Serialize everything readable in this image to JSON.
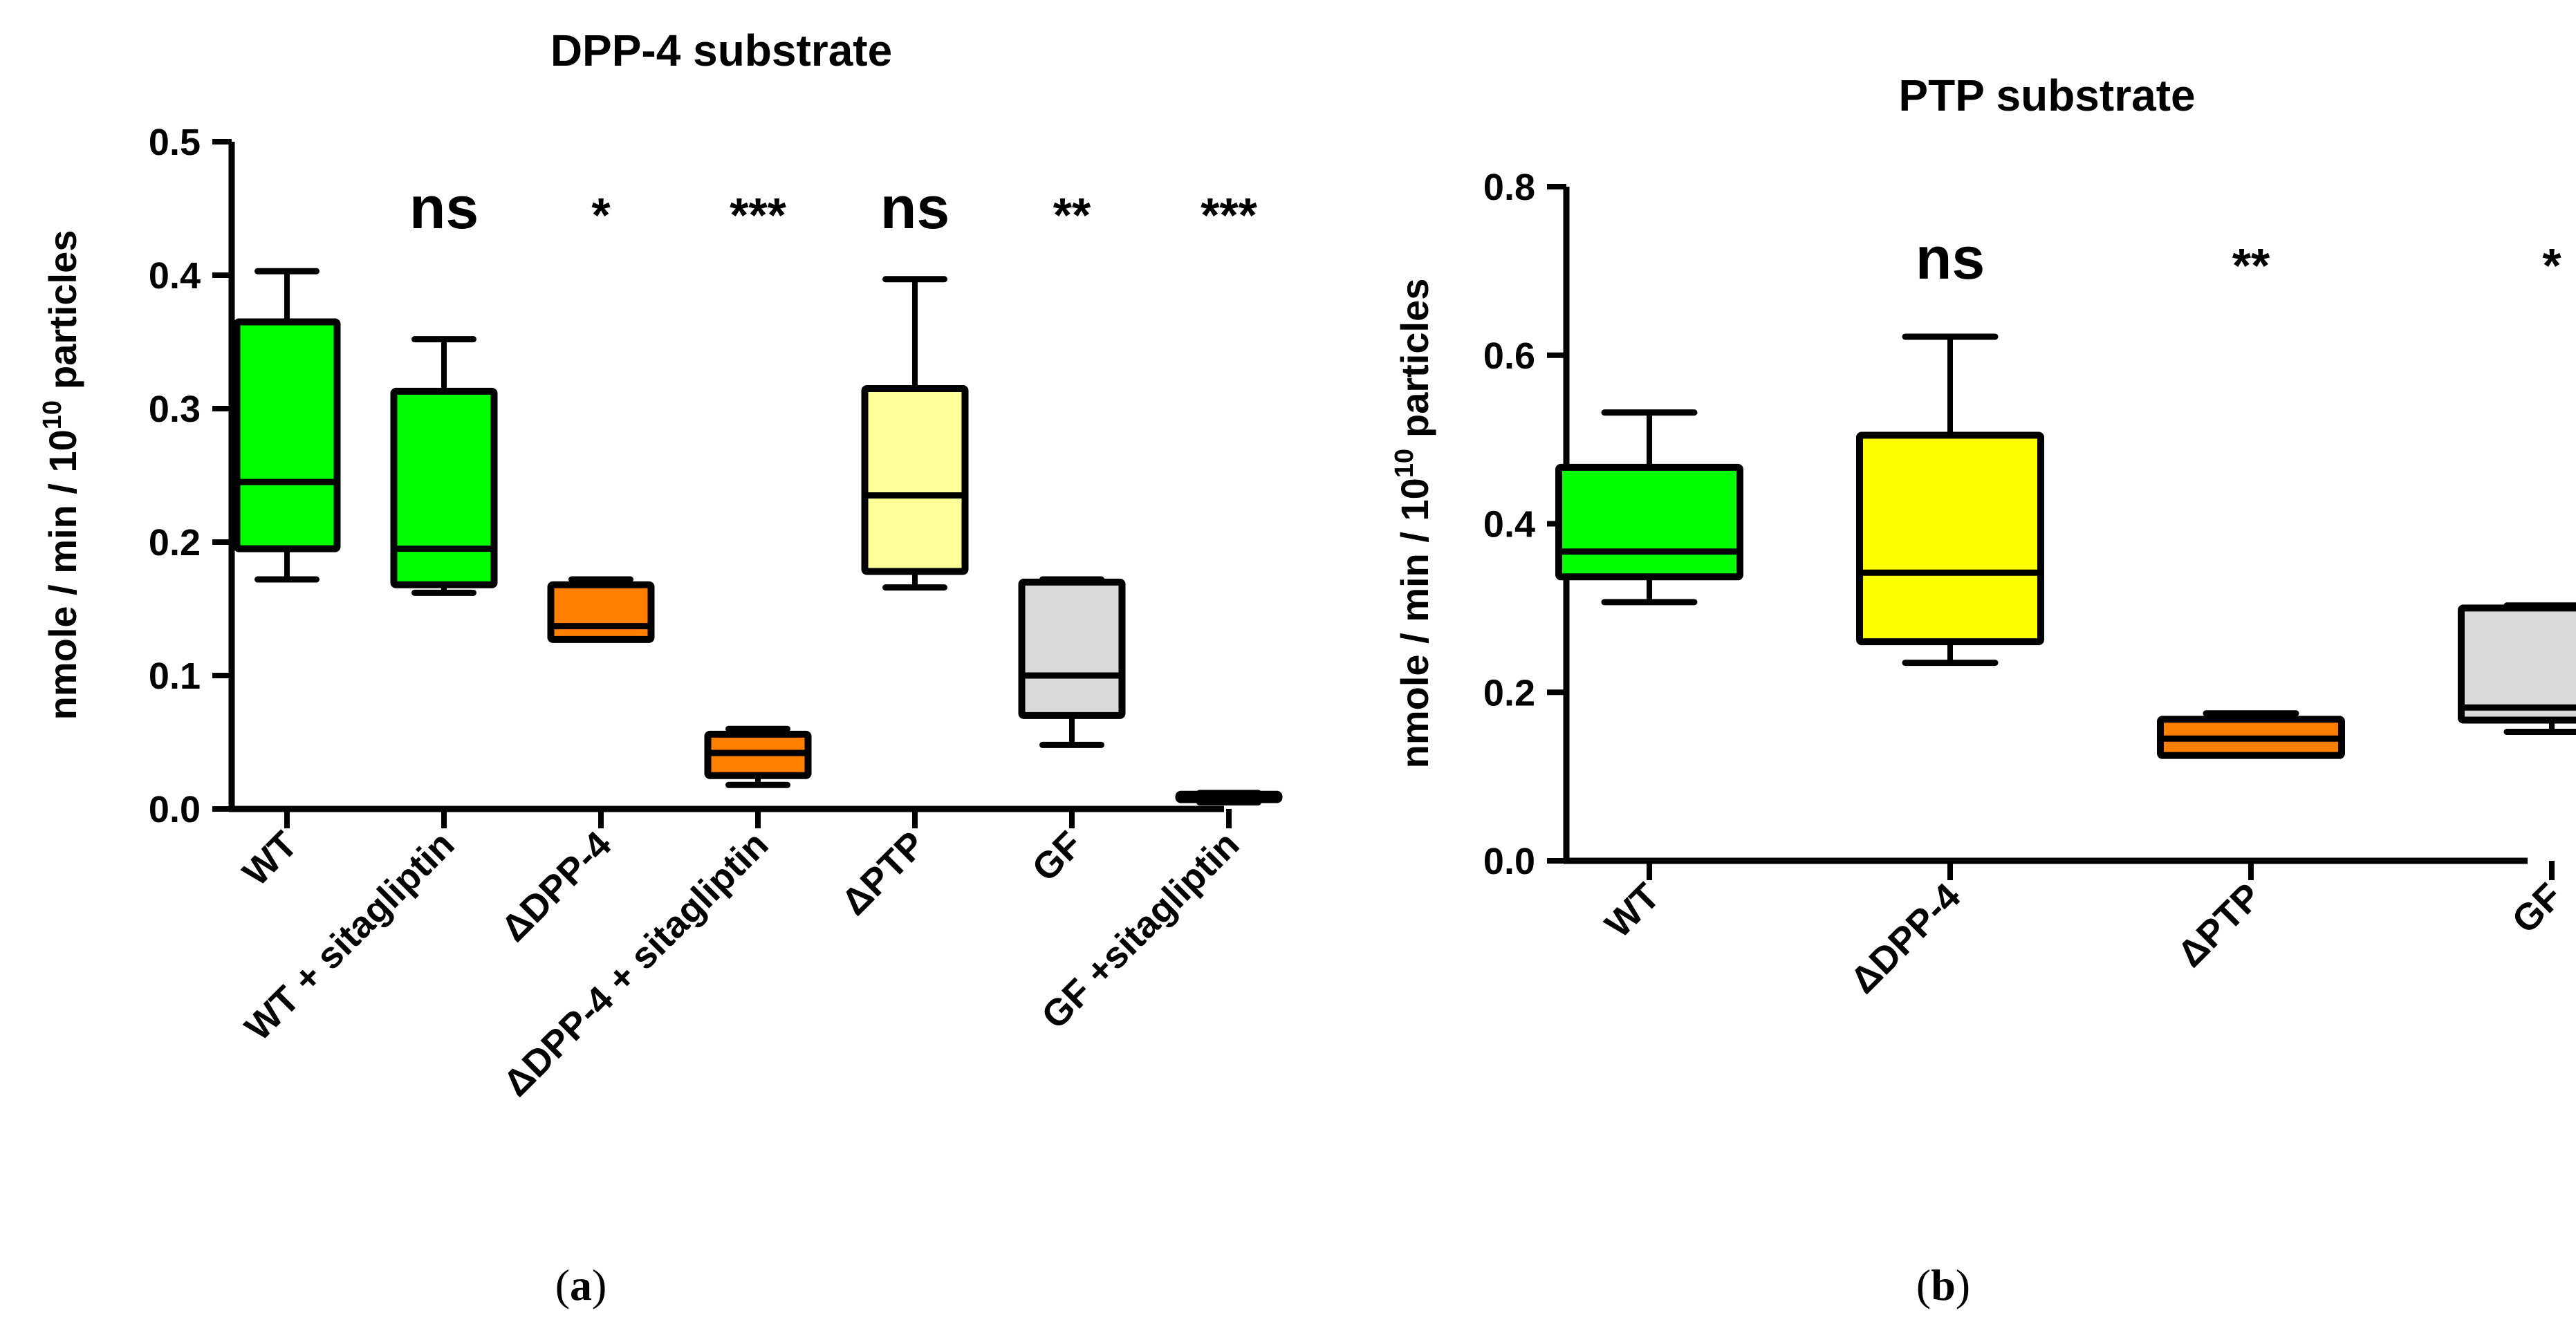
{
  "chart_data": [
    {
      "type": "box",
      "title": "DPP-4 substrate",
      "ylabel": "nmole / min / 10",
      "ylabel_exp": "10",
      "ylabel_tail": "particles",
      "ylim": [
        0,
        0.5
      ],
      "yticks": [
        0.0,
        0.1,
        0.2,
        0.3,
        0.4,
        0.5
      ],
      "yticklabels": [
        "0.0",
        "0.1",
        "0.2",
        "0.3",
        "0.4",
        "0.5"
      ],
      "categories": [
        "WT",
        "WT + sitagliptin",
        "ΔDPP-4",
        "ΔDPP-4 + sitagliptin",
        "ΔPTP",
        "GF",
        "GF +sitagliptin"
      ],
      "boxes": [
        {
          "min": 0.172,
          "q1": 0.195,
          "median": 0.245,
          "q3": 0.365,
          "max": 0.403,
          "color": "#00ff00"
        },
        {
          "min": 0.162,
          "q1": 0.168,
          "median": 0.195,
          "q3": 0.313,
          "max": 0.352,
          "color": "#00ff00"
        },
        {
          "min": 0.127,
          "q1": 0.127,
          "median": 0.137,
          "q3": 0.168,
          "max": 0.172,
          "color": "#ff8000"
        },
        {
          "min": 0.018,
          "q1": 0.025,
          "median": 0.042,
          "q3": 0.056,
          "max": 0.06,
          "color": "#ff8000"
        },
        {
          "min": 0.166,
          "q1": 0.178,
          "median": 0.235,
          "q3": 0.315,
          "max": 0.397,
          "color": "#ffff99"
        },
        {
          "min": 0.048,
          "q1": 0.07,
          "median": 0.1,
          "q3": 0.17,
          "max": 0.172,
          "color": "#d9d9d9"
        },
        {
          "min": 0.005,
          "q1": 0.007,
          "median": 0.009,
          "q3": 0.011,
          "max": 0.012,
          "color": "#ff8000"
        }
      ],
      "significance": [
        "",
        "ns",
        "*",
        "***",
        "ns",
        "**",
        "***"
      ],
      "panel_label": "a"
    },
    {
      "type": "box",
      "title": "PTP substrate",
      "ylabel": "nmole / min / 10",
      "ylabel_exp": "10",
      "ylabel_tail": "particles",
      "ylim": [
        0,
        0.8
      ],
      "yticks": [
        0.0,
        0.2,
        0.4,
        0.6,
        0.8
      ],
      "yticklabels": [
        "0.0",
        "0.2",
        "0.4",
        "0.6",
        "0.8"
      ],
      "categories": [
        "WT",
        "ΔDPP-4",
        "ΔPTP",
        "GF"
      ],
      "boxes": [
        {
          "min": 0.307,
          "q1": 0.337,
          "median": 0.367,
          "q3": 0.467,
          "max": 0.532,
          "color": "#00ff00"
        },
        {
          "min": 0.235,
          "q1": 0.26,
          "median": 0.342,
          "q3": 0.505,
          "max": 0.622,
          "color": "#ffff00"
        },
        {
          "min": 0.125,
          "q1": 0.125,
          "median": 0.145,
          "q3": 0.168,
          "max": 0.175,
          "color": "#ff8000"
        },
        {
          "min": 0.153,
          "q1": 0.167,
          "median": 0.182,
          "q3": 0.3,
          "max": 0.303,
          "color": "#d9d9d9"
        }
      ],
      "significance": [
        "",
        "ns",
        "**",
        "*"
      ],
      "panel_label": "b"
    }
  ]
}
